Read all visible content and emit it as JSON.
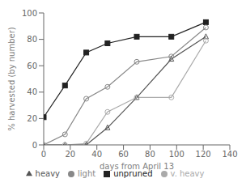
{
  "chart_data": {
    "type": "line",
    "xlabel": "days from April 13",
    "ylabel": "% harvested (by number)",
    "x": [
      0,
      16,
      32,
      48,
      70,
      96,
      122
    ],
    "xlim": [
      0,
      140
    ],
    "ylim": [
      0,
      100
    ],
    "xticks": [
      0,
      20,
      40,
      60,
      80,
      100,
      120,
      140
    ],
    "yticks": [
      0,
      20,
      40,
      60,
      80,
      100
    ],
    "grid": false,
    "legend": "bottom",
    "series": [
      {
        "name": "unpruned",
        "color": "#222222",
        "marker": "square",
        "line_style": "solid",
        "values": [
          21,
          45,
          70,
          77,
          82,
          82,
          93
        ]
      },
      {
        "name": "light",
        "color": "#888888",
        "marker": "circle-open",
        "line_style": "solid",
        "values": [
          0,
          8,
          35,
          44,
          63,
          67,
          89
        ]
      },
      {
        "name": "heavy",
        "color": "#555555",
        "marker": "triangle-open",
        "line_style": "solid",
        "values": [
          0,
          0,
          0,
          13,
          36,
          65,
          82
        ]
      },
      {
        "name": "v. heavy",
        "color": "#aaaaaa",
        "marker": "circle-open",
        "line_style": "solid",
        "values": [
          0,
          0,
          1,
          25,
          36,
          36,
          79
        ]
      }
    ]
  }
}
